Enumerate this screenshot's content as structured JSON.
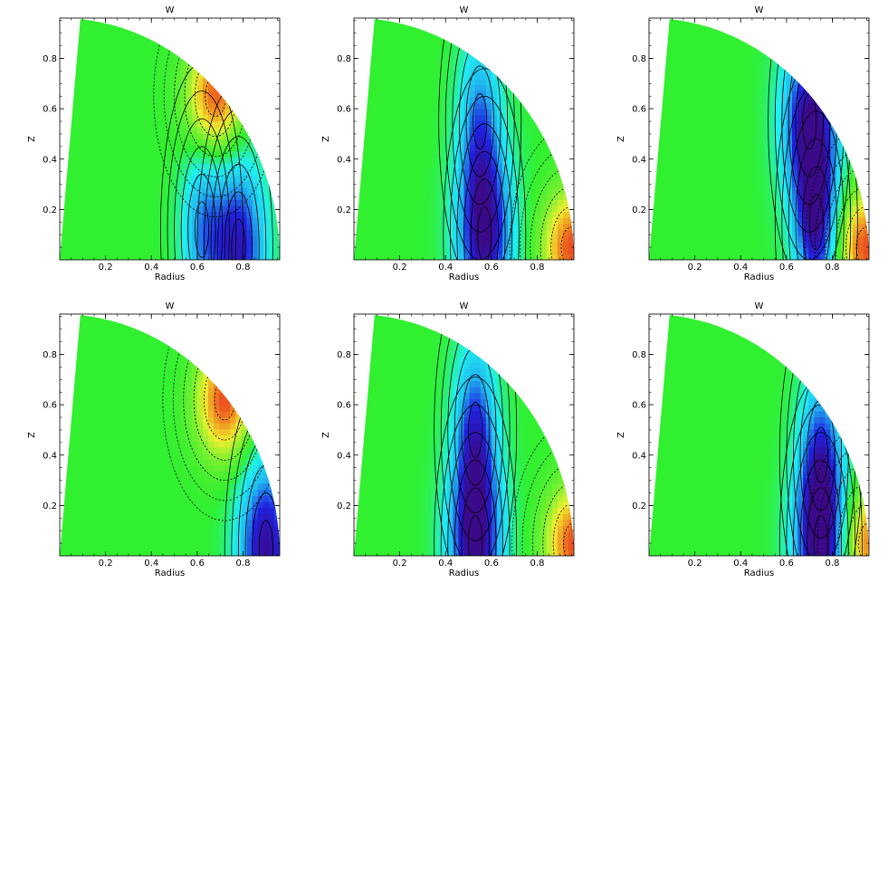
{
  "colors": {
    "colormap": [
      "#3a0a8a",
      "#2020e0",
      "#20b8f0",
      "#20f0f0",
      "#30f030",
      "#80f030",
      "#f0f030",
      "#f09020",
      "#e82020"
    ],
    "background": "#ffffff",
    "axes": "#000000"
  },
  "chart_data": [
    {
      "type": "heatmap",
      "subtype": "filled-contour",
      "title": "W",
      "xlabel": "Radius",
      "ylabel": "Z",
      "xticks": [
        0.2,
        0.4,
        0.6,
        0.8
      ],
      "yticks": [
        0.2,
        0.4,
        0.6,
        0.8
      ],
      "xlim": [
        0,
        0.96
      ],
      "ylim": [
        0,
        0.96
      ],
      "features": [
        {
          "kind": "positive-max",
          "x": 0.68,
          "y": 0.65,
          "level": 0.9
        },
        {
          "kind": "negative-min",
          "x": 0.78,
          "y": 0.05,
          "level": -0.85
        },
        {
          "kind": "negative",
          "x": 0.62,
          "y": 0.12,
          "level": -0.5
        }
      ],
      "contours": {
        "negative": "solid",
        "positive": "dotted"
      }
    },
    {
      "type": "heatmap",
      "subtype": "filled-contour",
      "title": "W",
      "xlabel": "Radius",
      "ylabel": "Z",
      "xticks": [
        0.2,
        0.4,
        0.6,
        0.8
      ],
      "yticks": [
        0.2,
        0.4,
        0.6,
        0.8
      ],
      "xlim": [
        0,
        0.96
      ],
      "ylim": [
        0,
        0.96
      ],
      "features": [
        {
          "kind": "negative-min",
          "x": 0.57,
          "y": 0.1,
          "level": -0.95
        },
        {
          "kind": "negative",
          "x": 0.55,
          "y": 0.55,
          "level": -0.55
        },
        {
          "kind": "positive-max",
          "x": 0.95,
          "y": 0.05,
          "level": 0.9
        }
      ],
      "contours": {
        "negative": "solid",
        "positive": "dotted"
      }
    },
    {
      "type": "heatmap",
      "subtype": "filled-contour",
      "title": "W",
      "xlabel": "Radius",
      "ylabel": "Z",
      "xticks": [
        0.2,
        0.4,
        0.6,
        0.8
      ],
      "yticks": [
        0.2,
        0.4,
        0.6,
        0.8
      ],
      "xlim": [
        0,
        0.96
      ],
      "ylim": [
        0,
        0.96
      ],
      "features": [
        {
          "kind": "negative-min",
          "x": 0.7,
          "y": 0.55,
          "level": -0.9
        },
        {
          "kind": "negative",
          "x": 0.73,
          "y": 0.15,
          "level": -0.85
        },
        {
          "kind": "positive-max",
          "x": 0.95,
          "y": 0.05,
          "level": 0.9
        }
      ],
      "contours": {
        "negative": "solid",
        "positive": "dotted"
      }
    },
    {
      "type": "heatmap",
      "subtype": "filled-contour",
      "title": "W",
      "xlabel": "Radius",
      "ylabel": "Z",
      "xticks": [
        0.2,
        0.4,
        0.6,
        0.8
      ],
      "yticks": [
        0.2,
        0.4,
        0.6,
        0.8
      ],
      "xlim": [
        0,
        0.96
      ],
      "ylim": [
        0,
        0.96
      ],
      "features": [
        {
          "kind": "positive-max",
          "x": 0.72,
          "y": 0.62,
          "level": 0.9
        },
        {
          "kind": "negative-min",
          "x": 0.9,
          "y": 0.03,
          "level": -0.95
        }
      ],
      "contours": {
        "negative": "solid",
        "positive": "dotted"
      }
    },
    {
      "type": "heatmap",
      "subtype": "filled-contour",
      "title": "W",
      "xlabel": "Radius",
      "ylabel": "Z",
      "xticks": [
        0.2,
        0.4,
        0.6,
        0.8
      ],
      "yticks": [
        0.2,
        0.4,
        0.6,
        0.8
      ],
      "xlim": [
        0,
        0.96
      ],
      "ylim": [
        0,
        0.96
      ],
      "features": [
        {
          "kind": "negative-min",
          "x": 0.53,
          "y": 0.05,
          "level": -0.95
        },
        {
          "kind": "negative",
          "x": 0.53,
          "y": 0.5,
          "level": -0.7
        },
        {
          "kind": "positive-max",
          "x": 0.96,
          "y": 0.05,
          "level": 0.9
        }
      ],
      "contours": {
        "negative": "solid",
        "positive": "dotted"
      }
    },
    {
      "type": "heatmap",
      "subtype": "filled-contour",
      "title": "W",
      "xlabel": "Radius",
      "ylabel": "Z",
      "xticks": [
        0.2,
        0.4,
        0.6,
        0.8
      ],
      "yticks": [
        0.2,
        0.4,
        0.6,
        0.8
      ],
      "xlim": [
        0,
        0.96
      ],
      "ylim": [
        0,
        0.96
      ],
      "features": [
        {
          "kind": "negative-min",
          "x": 0.75,
          "y": 0.05,
          "level": -0.95
        },
        {
          "kind": "negative",
          "x": 0.75,
          "y": 0.4,
          "level": -0.6
        },
        {
          "kind": "positive-max",
          "x": 0.96,
          "y": 0.05,
          "level": 0.8
        }
      ],
      "contours": {
        "negative": "solid",
        "positive": "dotted"
      }
    }
  ]
}
